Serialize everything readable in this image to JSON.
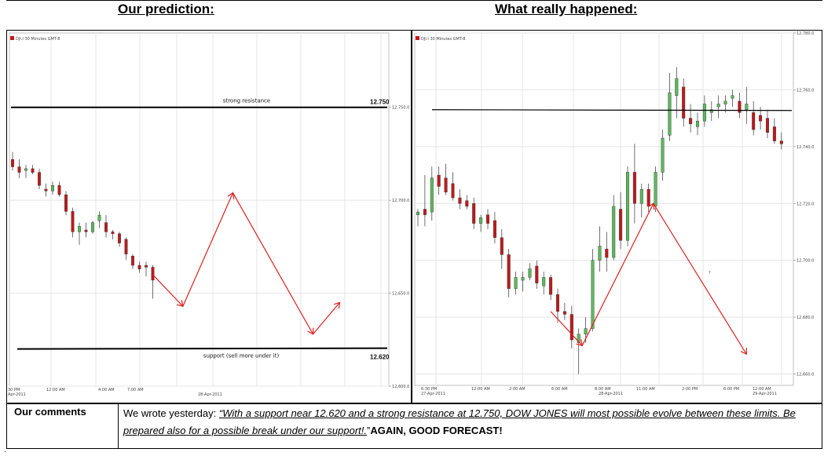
{
  "headers": {
    "left": "Our prediction:",
    "right": "What really happened:"
  },
  "chart_data": [
    {
      "type": "candlestick",
      "title": "Our prediction:",
      "chart_label": "DJI.I 30 Minutes GMT-8",
      "ylim": [
        12600,
        12790
      ],
      "y_ticks": [
        "12,750.0",
        "12,700.0",
        "12,650.0",
        "12,600.0"
      ],
      "x_ticks": [
        "30 PM",
        "12:00 AM",
        "4:00 AM",
        "7:00 AM"
      ],
      "date_labels": [
        "Apr-2011",
        "28-Apr-2011"
      ],
      "candles": [
        {
          "o": 12722,
          "h": 12726,
          "l": 12716,
          "c": 12718
        },
        {
          "o": 12718,
          "h": 12722,
          "l": 12712,
          "c": 12715
        },
        {
          "o": 12716,
          "h": 12719,
          "l": 12712,
          "c": 12717
        },
        {
          "o": 12717,
          "h": 12719,
          "l": 12714,
          "c": 12715
        },
        {
          "o": 12715,
          "h": 12717,
          "l": 12706,
          "c": 12708
        },
        {
          "o": 12706,
          "h": 12709,
          "l": 12702,
          "c": 12705
        },
        {
          "o": 12705,
          "h": 12710,
          "l": 12703,
          "c": 12708
        },
        {
          "o": 12708,
          "h": 12710,
          "l": 12702,
          "c": 12703
        },
        {
          "o": 12703,
          "h": 12705,
          "l": 12692,
          "c": 12694
        },
        {
          "o": 12694,
          "h": 12696,
          "l": 12680,
          "c": 12683
        },
        {
          "o": 12683,
          "h": 12688,
          "l": 12676,
          "c": 12686
        },
        {
          "o": 12684,
          "h": 12688,
          "l": 12680,
          "c": 12683
        },
        {
          "o": 12683,
          "h": 12689,
          "l": 12682,
          "c": 12688
        },
        {
          "o": 12689,
          "h": 12694,
          "l": 12685,
          "c": 12692
        },
        {
          "o": 12688,
          "h": 12692,
          "l": 12680,
          "c": 12683
        },
        {
          "o": 12683,
          "h": 12684,
          "l": 12679,
          "c": 12682
        },
        {
          "o": 12682,
          "h": 12683,
          "l": 12675,
          "c": 12677
        },
        {
          "o": 12679,
          "h": 12680,
          "l": 12668,
          "c": 12671
        },
        {
          "o": 12670,
          "h": 12671,
          "l": 12663,
          "c": 12665
        },
        {
          "o": 12665,
          "h": 12667,
          "l": 12661,
          "c": 12663
        },
        {
          "o": 12665,
          "h": 12667,
          "l": 12659,
          "c": 12664
        },
        {
          "o": 12664,
          "h": 12665,
          "l": 12647,
          "c": 12657
        }
      ],
      "levels": [
        {
          "label": "strong resistance",
          "value_label": "12.750",
          "value": 12750
        },
        {
          "label": "support (sell more under it)",
          "value_label": "12.620",
          "value": 12620
        }
      ],
      "forecast_path": [
        {
          "i": 21,
          "y": 12660
        },
        {
          "i": 25.5,
          "y": 12643
        },
        {
          "i": 33,
          "y": 12704
        },
        {
          "i": 45,
          "y": 12628
        },
        {
          "i": 49,
          "y": 12645
        }
      ],
      "colors": {
        "up": "#5cb85c",
        "down": "#c0191b",
        "forecast": "#e02020",
        "level": "#000000"
      }
    },
    {
      "type": "candlestick",
      "title": "What really happened:",
      "chart_label": "DJI.I 30 Minutes GMT-8",
      "ylim": [
        12656,
        12780
      ],
      "y_ticks": [
        "12,780.0",
        "12,760.0",
        "12,740.0",
        "12,720.0",
        "12,700.0",
        "12,680.0",
        "12,660.0"
      ],
      "x_ticks": [
        "6:30 PM",
        "12:00 AM",
        "2:00 AM",
        "6:00 AM",
        "8:00 AM",
        "11:00 AM",
        "2:00 PM",
        "6:00 PM",
        "12:00 AM"
      ],
      "date_labels": [
        "27-Apr-2011",
        "28-Apr-2011",
        "29-Apr-2011"
      ],
      "candles": [
        {
          "o": 12716,
          "h": 12718,
          "l": 12712,
          "c": 12717
        },
        {
          "o": 12718,
          "h": 12730,
          "l": 12712,
          "c": 12716
        },
        {
          "o": 12717,
          "h": 12733,
          "l": 12714,
          "c": 12729
        },
        {
          "o": 12730,
          "h": 12733,
          "l": 12723,
          "c": 12726
        },
        {
          "o": 12729,
          "h": 12734,
          "l": 12723,
          "c": 12724
        },
        {
          "o": 12727,
          "h": 12731,
          "l": 12721,
          "c": 12722
        },
        {
          "o": 12722,
          "h": 12725,
          "l": 12718,
          "c": 12720
        },
        {
          "o": 12721,
          "h": 12723,
          "l": 12718,
          "c": 12719
        },
        {
          "o": 12720,
          "h": 12722,
          "l": 12711,
          "c": 12713
        },
        {
          "o": 12713,
          "h": 12716,
          "l": 12710,
          "c": 12715
        },
        {
          "o": 12716,
          "h": 12718,
          "l": 12711,
          "c": 12713
        },
        {
          "o": 12714,
          "h": 12717,
          "l": 12706,
          "c": 12708
        },
        {
          "o": 12708,
          "h": 12711,
          "l": 12697,
          "c": 12702
        },
        {
          "o": 12702,
          "h": 12704,
          "l": 12687,
          "c": 12690
        },
        {
          "o": 12690,
          "h": 12696,
          "l": 12688,
          "c": 12694
        },
        {
          "o": 12693,
          "h": 12696,
          "l": 12689,
          "c": 12694
        },
        {
          "o": 12694,
          "h": 12699,
          "l": 12693,
          "c": 12697
        },
        {
          "o": 12698,
          "h": 12700,
          "l": 12690,
          "c": 12692
        },
        {
          "o": 12691,
          "h": 12696,
          "l": 12688,
          "c": 12694
        },
        {
          "o": 12694,
          "h": 12695,
          "l": 12686,
          "c": 12688
        },
        {
          "o": 12688,
          "h": 12690,
          "l": 12678,
          "c": 12682
        },
        {
          "o": 12682,
          "h": 12685,
          "l": 12679,
          "c": 12681
        },
        {
          "o": 12681,
          "h": 12684,
          "l": 12669,
          "c": 12672
        },
        {
          "o": 12671,
          "h": 12676,
          "l": 12660,
          "c": 12674
        },
        {
          "o": 12674,
          "h": 12680,
          "l": 12671,
          "c": 12676
        },
        {
          "o": 12676,
          "h": 12704,
          "l": 12675,
          "c": 12700
        },
        {
          "o": 12700,
          "h": 12712,
          "l": 12696,
          "c": 12705
        },
        {
          "o": 12704,
          "h": 12710,
          "l": 12696,
          "c": 12701
        },
        {
          "o": 12701,
          "h": 12723,
          "l": 12700,
          "c": 12719
        },
        {
          "o": 12718,
          "h": 12724,
          "l": 12704,
          "c": 12707
        },
        {
          "o": 12707,
          "h": 12733,
          "l": 12705,
          "c": 12731
        },
        {
          "o": 12731,
          "h": 12741,
          "l": 12713,
          "c": 12720
        },
        {
          "o": 12720,
          "h": 12727,
          "l": 12715,
          "c": 12725
        },
        {
          "o": 12725,
          "h": 12727,
          "l": 12717,
          "c": 12719
        },
        {
          "o": 12719,
          "h": 12733,
          "l": 12717,
          "c": 12731
        },
        {
          "o": 12731,
          "h": 12746,
          "l": 12728,
          "c": 12743
        },
        {
          "o": 12744,
          "h": 12766,
          "l": 12742,
          "c": 12759
        },
        {
          "o": 12758,
          "h": 12768,
          "l": 12750,
          "c": 12764
        },
        {
          "o": 12761,
          "h": 12764,
          "l": 12747,
          "c": 12750
        },
        {
          "o": 12750,
          "h": 12755,
          "l": 12745,
          "c": 12748
        },
        {
          "o": 12747,
          "h": 12752,
          "l": 12744,
          "c": 12749
        },
        {
          "o": 12749,
          "h": 12758,
          "l": 12747,
          "c": 12755
        },
        {
          "o": 12752,
          "h": 12756,
          "l": 12749,
          "c": 12753
        },
        {
          "o": 12754,
          "h": 12758,
          "l": 12750,
          "c": 12755
        },
        {
          "o": 12755,
          "h": 12758,
          "l": 12752,
          "c": 12756
        },
        {
          "o": 12757,
          "h": 12760,
          "l": 12754,
          "c": 12758
        },
        {
          "o": 12756,
          "h": 12759,
          "l": 12750,
          "c": 12752
        },
        {
          "o": 12753,
          "h": 12761,
          "l": 12748,
          "c": 12755
        },
        {
          "o": 12752,
          "h": 12756,
          "l": 12744,
          "c": 12746
        },
        {
          "o": 12751,
          "h": 12754,
          "l": 12746,
          "c": 12749
        },
        {
          "o": 12750,
          "h": 12753,
          "l": 12743,
          "c": 12745
        },
        {
          "o": 12747,
          "h": 12750,
          "l": 12741,
          "c": 12742
        },
        {
          "o": 12742,
          "h": 12745,
          "l": 12739,
          "c": 12741
        }
      ],
      "resistance_line": 12753,
      "actual_path": [
        {
          "i": 19,
          "y": 12682
        },
        {
          "i": 23.5,
          "y": 12670
        },
        {
          "i": 33.7,
          "y": 12720
        },
        {
          "i": 47,
          "y": 12667
        }
      ],
      "annotation": "?",
      "colors": {
        "up": "#5cb85c",
        "down": "#c0191b",
        "forecast": "#e02020",
        "level": "#000000"
      }
    }
  ],
  "comments": {
    "label": "Our comments",
    "intro": "We wrote yesterday: ",
    "quote": "“With a support near 12.620 and a strong resistance at 12.750, DOW JONES will most possible evolve between these limits. Be prepared also for a possible break under our support!.",
    "close_quote": "”",
    "emphasis": "AGAIN, GOOD FORECAST!"
  },
  "footer_mark": "."
}
